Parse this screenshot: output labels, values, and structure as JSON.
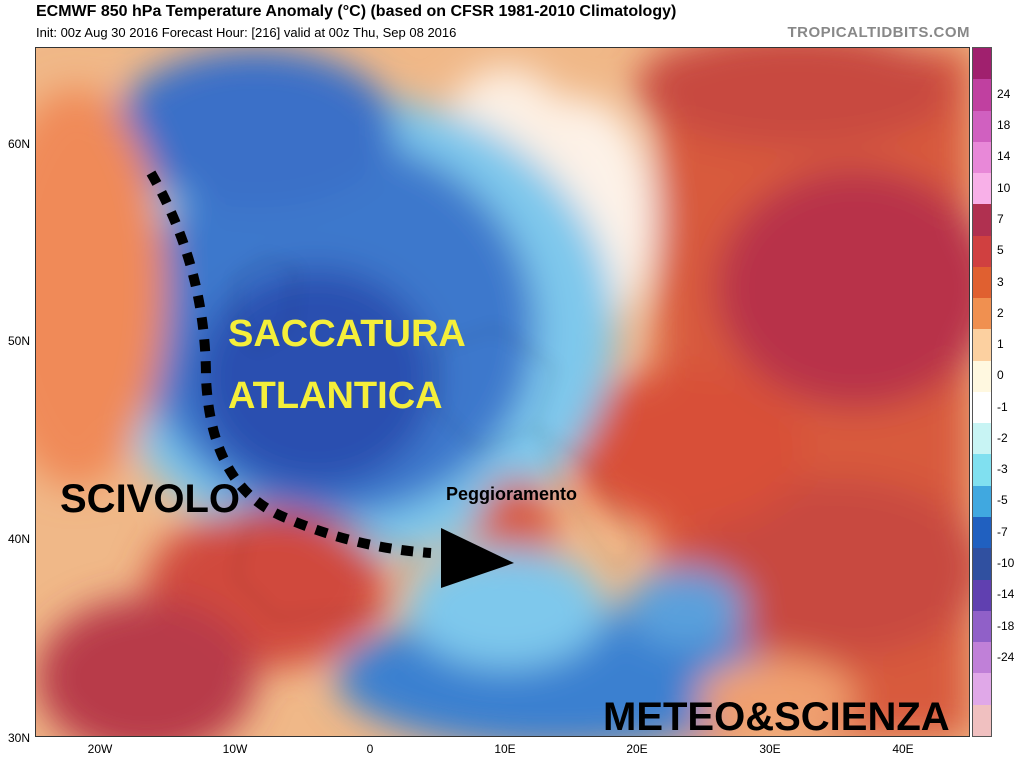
{
  "header": {
    "title": "ECMWF 850 hPa Temperature Anomaly (°C) (based on CFSR 1981-2010 Climatology)",
    "subtitle": "Init: 00z Aug 30 2016   Forecast Hour: [216]   valid at 00z Thu, Sep 08 2016",
    "brand": "TROPICALTIDBITS.COM"
  },
  "axes": {
    "lat_labels": [
      "60N",
      "50N",
      "40N",
      "30N"
    ],
    "lon_labels": [
      "20W",
      "10W",
      "0",
      "10E",
      "20E",
      "30E",
      "40E"
    ]
  },
  "overlays": {
    "saccatura": "SACCATURA",
    "atlantica": "ATLANTICA",
    "scivolo": "SCIVOLO",
    "peggioramento": "Peggioramento",
    "meteo": "METEO&SCIENZA"
  },
  "colorbar": {
    "labels": [
      "24",
      "18",
      "14",
      "10",
      "7",
      "5",
      "3",
      "2",
      "1",
      "0",
      "-1",
      "-2",
      "-3",
      "-5",
      "-7",
      "-10",
      "-14",
      "-18",
      "-24"
    ],
    "colors": [
      "#a0206e",
      "#c040a0",
      "#d060c0",
      "#e888d8",
      "#f8b0e8",
      "#b03050",
      "#d04040",
      "#e06030",
      "#f09050",
      "#fcd0a0",
      "#fff8e0",
      "#ffffff",
      "#c8f4f4",
      "#80e0f0",
      "#40a8e0",
      "#2060c0",
      "#3050a0",
      "#6040b0",
      "#9060c8",
      "#c080d8",
      "#e0a8e8",
      "#f0c0c0"
    ]
  },
  "map_colors": {
    "warm_deep": "#b83248",
    "warm": "#e0603a",
    "warm_light": "#f4a060",
    "neutral": "#fdf0e0",
    "cool_light": "#9ee0f0",
    "cool": "#4a8ed8",
    "cool_deep": "#2a50b0",
    "arrow": "#000000"
  }
}
